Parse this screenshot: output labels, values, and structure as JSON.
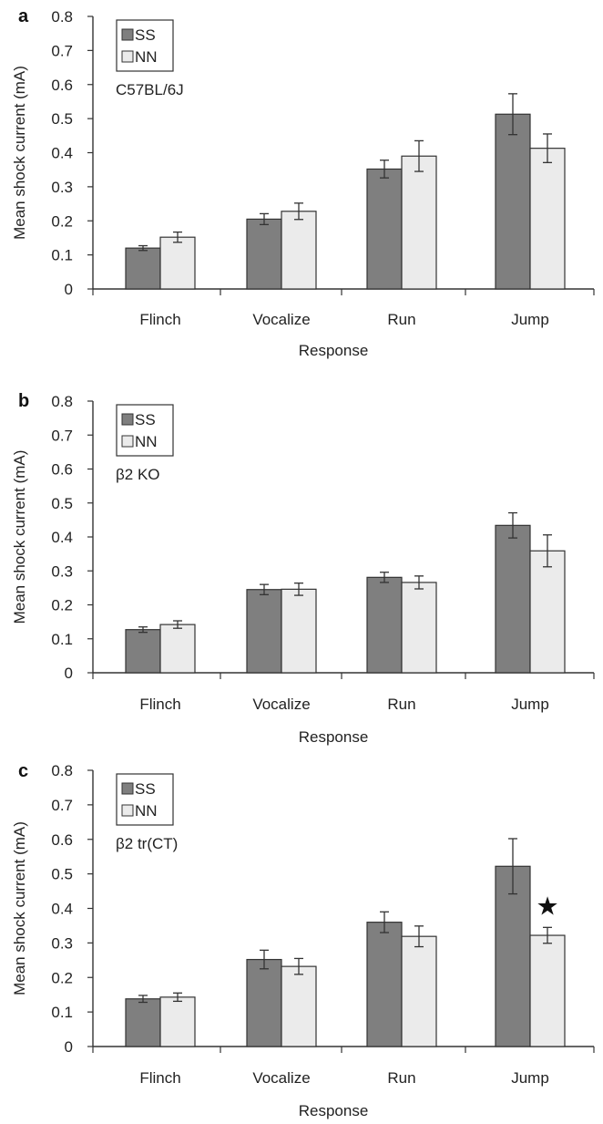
{
  "colors": {
    "SS": "#7f7f7f",
    "NN": "#ebebeb"
  },
  "chart_data": [
    {
      "type": "bar",
      "panel": "a",
      "strain_label": "C57BL/6J",
      "categories": [
        "Flinch",
        "Vocalize",
        "Run",
        "Jump"
      ],
      "xlabel": "Response",
      "ylabel": "Mean shock current (mA)",
      "ylim": [
        0,
        0.8
      ],
      "yticks": [
        "0",
        "0.1",
        "0.2",
        "0.3",
        "0.4",
        "0.5",
        "0.6",
        "0.7",
        "0.8"
      ],
      "legend": [
        "SS",
        "NN"
      ],
      "series": [
        {
          "name": "SS",
          "values": [
            0.12,
            0.205,
            0.352,
            0.513
          ],
          "errors": [
            0.007,
            0.016,
            0.026,
            0.06
          ]
        },
        {
          "name": "NN",
          "values": [
            0.152,
            0.228,
            0.39,
            0.413
          ],
          "errors": [
            0.015,
            0.024,
            0.045,
            0.042
          ]
        }
      ],
      "annotations": []
    },
    {
      "type": "bar",
      "panel": "b",
      "strain_label": "β2 KO",
      "categories": [
        "Flinch",
        "Vocalize",
        "Run",
        "Jump"
      ],
      "xlabel": "Response",
      "ylabel": "Mean shock current (mA)",
      "ylim": [
        0,
        0.8
      ],
      "yticks": [
        "0",
        "0.1",
        "0.2",
        "0.3",
        "0.4",
        "0.5",
        "0.6",
        "0.7",
        "0.8"
      ],
      "legend": [
        "SS",
        "NN"
      ],
      "series": [
        {
          "name": "SS",
          "values": [
            0.127,
            0.245,
            0.281,
            0.434
          ],
          "errors": [
            0.008,
            0.015,
            0.015,
            0.037
          ]
        },
        {
          "name": "NN",
          "values": [
            0.142,
            0.246,
            0.266,
            0.359
          ],
          "errors": [
            0.011,
            0.018,
            0.019,
            0.047
          ]
        }
      ],
      "annotations": []
    },
    {
      "type": "bar",
      "panel": "c",
      "strain_label": "β2 tr(CT)",
      "categories": [
        "Flinch",
        "Vocalize",
        "Run",
        "Jump"
      ],
      "xlabel": "Response",
      "ylabel": "Mean shock current (mA)",
      "ylim": [
        0,
        0.8
      ],
      "yticks": [
        "0",
        "0.1",
        "0.2",
        "0.3",
        "0.4",
        "0.5",
        "0.6",
        "0.7",
        "0.8"
      ],
      "legend": [
        "SS",
        "NN"
      ],
      "series": [
        {
          "name": "SS",
          "values": [
            0.138,
            0.252,
            0.36,
            0.522
          ],
          "errors": [
            0.01,
            0.027,
            0.03,
            0.08
          ]
        },
        {
          "name": "NN",
          "values": [
            0.143,
            0.232,
            0.319,
            0.322
          ],
          "errors": [
            0.012,
            0.023,
            0.03,
            0.023
          ]
        }
      ],
      "annotations": [
        {
          "text": "★",
          "category": "Jump",
          "series": "NN"
        }
      ]
    }
  ]
}
